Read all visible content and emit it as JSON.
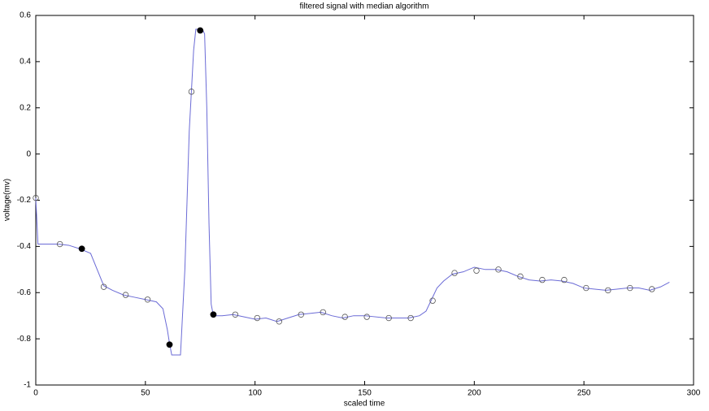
{
  "chart_data": {
    "type": "line",
    "title": "filtered signal with median algorithm",
    "x_label": "scaled time",
    "y_label": "voltage(mv)",
    "xlim": [
      0,
      300
    ],
    "xticks": [
      0,
      50,
      100,
      150,
      200,
      250,
      300
    ],
    "ylim": [
      -1,
      0.6
    ],
    "yticks": [
      -1,
      -0.8,
      -0.6,
      -0.4,
      -0.2,
      0,
      0.2,
      0.4,
      0.6
    ],
    "grid": false,
    "series": [
      {
        "type": "line",
        "color": "#6b6bd6",
        "x": [
          0,
          1,
          10,
          15,
          20,
          25,
          28,
          31,
          35,
          40,
          45,
          50,
          55,
          58,
          60,
          61,
          62,
          66,
          68,
          70,
          72,
          73,
          76,
          77,
          78,
          79,
          80,
          81,
          85,
          90,
          95,
          100,
          105,
          110,
          115,
          120,
          125,
          130,
          135,
          140,
          145,
          150,
          160,
          170,
          175,
          178,
          180,
          183,
          186,
          190,
          195,
          200,
          205,
          210,
          215,
          220,
          225,
          230,
          235,
          240,
          245,
          250,
          255,
          260,
          265,
          270,
          275,
          280,
          285,
          289
        ],
        "values": [
          -0.19,
          -0.39,
          -0.39,
          -0.395,
          -0.41,
          -0.43,
          -0.5,
          -0.57,
          -0.59,
          -0.61,
          -0.62,
          -0.63,
          -0.64,
          -0.67,
          -0.76,
          -0.82,
          -0.87,
          -0.87,
          -0.5,
          0.1,
          0.45,
          0.54,
          0.54,
          0.52,
          0.2,
          -0.3,
          -0.65,
          -0.7,
          -0.7,
          -0.695,
          -0.705,
          -0.715,
          -0.71,
          -0.725,
          -0.71,
          -0.695,
          -0.69,
          -0.685,
          -0.7,
          -0.71,
          -0.7,
          -0.7,
          -0.71,
          -0.71,
          -0.7,
          -0.68,
          -0.64,
          -0.58,
          -0.55,
          -0.52,
          -0.51,
          -0.49,
          -0.5,
          -0.5,
          -0.51,
          -0.53,
          -0.545,
          -0.55,
          -0.545,
          -0.55,
          -0.56,
          -0.58,
          -0.585,
          -0.59,
          -0.585,
          -0.58,
          -0.58,
          -0.59,
          -0.575,
          -0.555
        ]
      },
      {
        "type": "scatter",
        "marker": "open",
        "color": "#555555",
        "x": [
          0,
          11,
          31,
          41,
          51,
          71,
          91,
          101,
          111,
          121,
          131,
          141,
          151,
          161,
          171,
          181,
          191,
          201,
          211,
          221,
          231,
          241,
          251,
          261,
          271,
          281
        ],
        "values": [
          -0.19,
          -0.39,
          -0.575,
          -0.61,
          -0.63,
          0.27,
          -0.695,
          -0.71,
          -0.725,
          -0.695,
          -0.685,
          -0.705,
          -0.705,
          -0.71,
          -0.71,
          -0.635,
          -0.515,
          -0.505,
          -0.5,
          -0.53,
          -0.545,
          -0.545,
          -0.58,
          -0.59,
          -0.58,
          -0.585
        ]
      },
      {
        "type": "scatter",
        "marker": "filled",
        "color": "#000000",
        "x": [
          21,
          61,
          75,
          81
        ],
        "values": [
          -0.41,
          -0.825,
          0.535,
          -0.695
        ]
      }
    ]
  }
}
